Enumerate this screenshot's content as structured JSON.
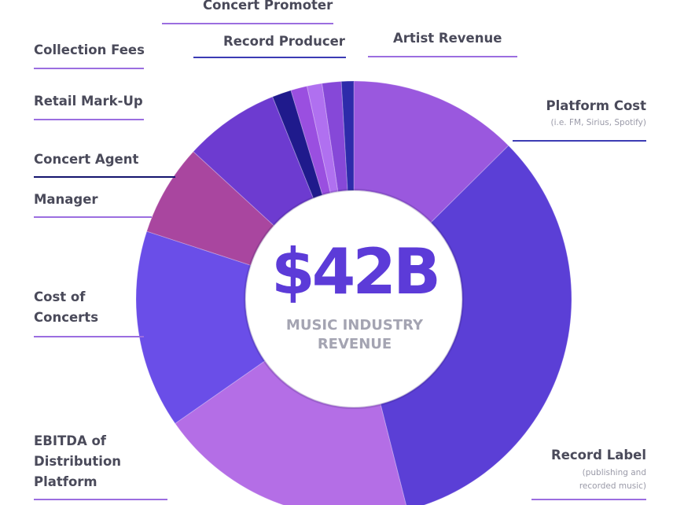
{
  "chart_data": {
    "type": "pie",
    "center_value": "$42B",
    "center_caption_line1": "MUSIC INDUSTRY",
    "center_caption_line2": "REVENUE",
    "slices": [
      {
        "name": "Artist Revenue",
        "share": 0.124,
        "color": "#9a58de"
      },
      {
        "name": "Platform Cost",
        "sublabel": "(i.e. FM, Sirius, Spotify)",
        "share": 0.33,
        "color": "#5b3fd6"
      },
      {
        "name": "Record Label",
        "sublabel_line1": "(publishing and",
        "sublabel_line2": "recorded music)",
        "share": 0.19,
        "color": "#b46ee6"
      },
      {
        "name": "EBITDA of Distribution Platform",
        "name_line1": "EBITDA of",
        "name_line2": "Distribution",
        "name_line3": "Platform",
        "share": 0.145,
        "color": "#6a4ee8"
      },
      {
        "name": "Cost of Concerts",
        "name_line1": "Cost of",
        "name_line2": "Concerts",
        "share": 0.067,
        "color": "#a9469f"
      },
      {
        "name": "Manager",
        "share": 0.07,
        "color": "#6d3bd0"
      },
      {
        "name": "Concert Agent",
        "share": 0.014,
        "color": "#1f1a8c"
      },
      {
        "name": "Retail Mark-Up",
        "share": 0.012,
        "color": "#9a4fe0"
      },
      {
        "name": "Collection Fees",
        "share": 0.011,
        "color": "#b070f0"
      },
      {
        "name": "Concert Promoter",
        "share": 0.014,
        "color": "#8648d8"
      },
      {
        "name": "Record Producer",
        "share": 0.009,
        "color": "#2d2baa"
      }
    ],
    "line_colors": {
      "purple": "#9b6ee0",
      "blue": "#3c3cb4",
      "navy": "#14146e"
    }
  }
}
